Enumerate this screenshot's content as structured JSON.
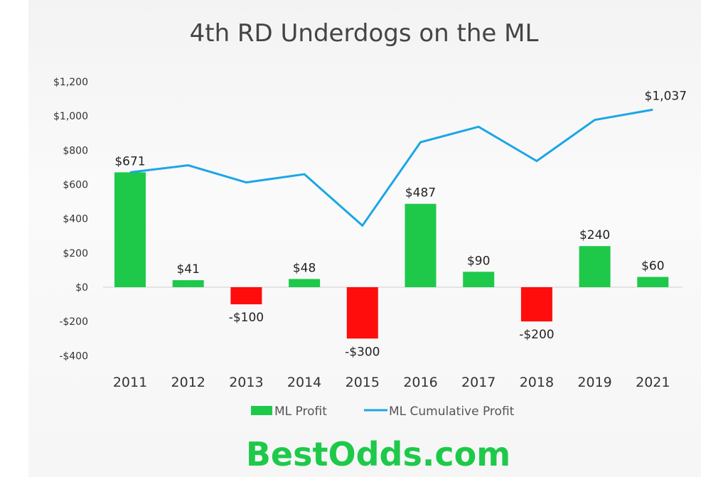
{
  "chart_data": {
    "type": "bar",
    "title": "4th RD Underdogs on the ML",
    "categories": [
      "2011",
      "2012",
      "2013",
      "2014",
      "2015",
      "2016",
      "2017",
      "2018",
      "2019",
      "2021"
    ],
    "series": [
      {
        "name": "ML Profit",
        "type": "bar",
        "values": [
          671,
          41,
          -100,
          48,
          -300,
          487,
          90,
          -200,
          240,
          60
        ],
        "labels": [
          "$671",
          "$41",
          "-$100",
          "$48",
          "-$300",
          "$487",
          "$90",
          "-$200",
          "$240",
          "$60"
        ]
      },
      {
        "name": "ML Cumulative Profit",
        "type": "line",
        "values": [
          671,
          712,
          612,
          660,
          360,
          847,
          937,
          737,
          977,
          1037
        ],
        "end_label": "$1,037"
      }
    ],
    "ylim": [
      -400,
      1200
    ],
    "yticks": [
      1200,
      1000,
      800,
      600,
      400,
      200,
      0,
      -200,
      -400
    ],
    "ytick_labels": [
      "$1,200",
      "$1,000",
      "$800",
      "$600",
      "$400",
      "$200",
      "$0",
      "-$200",
      "-$400"
    ],
    "grid": false,
    "legend": "bottom",
    "colors": {
      "positive": "#1ec94a",
      "negative": "#ff0d0d",
      "line": "#1ba6e6"
    }
  },
  "branding": {
    "logo_text": "BestOdds.com"
  }
}
